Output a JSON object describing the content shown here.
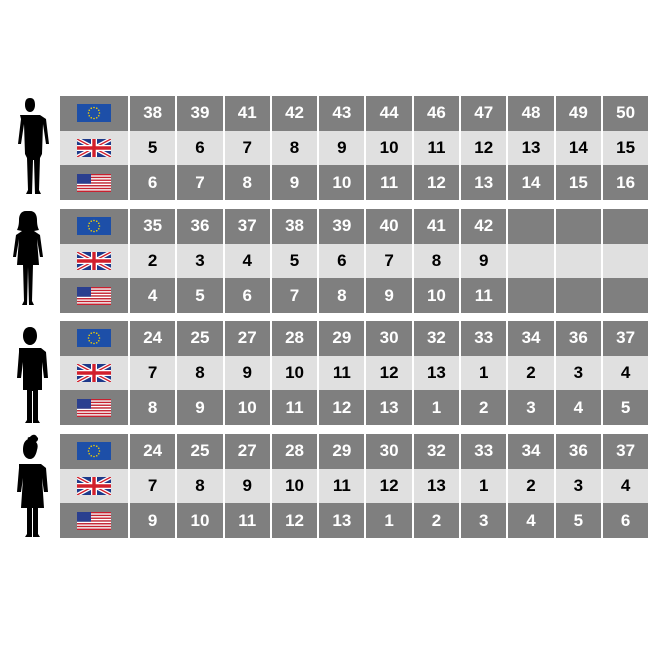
{
  "colors": {
    "dark_row": "#7f7f7f",
    "light_row": "#e0e0e0"
  },
  "row_flags": [
    "eu-flag-icon",
    "uk-flag-icon",
    "us-flag-icon"
  ],
  "groups": [
    {
      "figure": "man-silhouette-icon",
      "rows": [
        [
          "38",
          "39",
          "41",
          "42",
          "43",
          "44",
          "46",
          "47",
          "48",
          "49",
          "50"
        ],
        [
          "5",
          "6",
          "7",
          "8",
          "9",
          "10",
          "11",
          "12",
          "13",
          "14",
          "15"
        ],
        [
          "6",
          "7",
          "8",
          "9",
          "10",
          "11",
          "12",
          "13",
          "14",
          "15",
          "16"
        ]
      ]
    },
    {
      "figure": "woman-silhouette-icon",
      "rows": [
        [
          "35",
          "36",
          "37",
          "38",
          "39",
          "40",
          "41",
          "42",
          "",
          "",
          ""
        ],
        [
          "2",
          "3",
          "4",
          "5",
          "6",
          "7",
          "8",
          "9",
          "",
          "",
          ""
        ],
        [
          "4",
          "5",
          "6",
          "7",
          "8",
          "9",
          "10",
          "11",
          "",
          "",
          ""
        ]
      ]
    },
    {
      "figure": "boy-silhouette-icon",
      "rows": [
        [
          "24",
          "25",
          "27",
          "28",
          "29",
          "30",
          "32",
          "33",
          "34",
          "36",
          "37"
        ],
        [
          "7",
          "8",
          "9",
          "10",
          "11",
          "12",
          "13",
          "1",
          "2",
          "3",
          "4"
        ],
        [
          "8",
          "9",
          "10",
          "11",
          "12",
          "13",
          "1",
          "2",
          "3",
          "4",
          "5"
        ]
      ]
    },
    {
      "figure": "girl-silhouette-icon",
      "rows": [
        [
          "24",
          "25",
          "27",
          "28",
          "29",
          "30",
          "32",
          "33",
          "34",
          "36",
          "37"
        ],
        [
          "7",
          "8",
          "9",
          "10",
          "11",
          "12",
          "13",
          "1",
          "2",
          "3",
          "4"
        ],
        [
          "9",
          "10",
          "11",
          "12",
          "13",
          "1",
          "2",
          "3",
          "4",
          "5",
          "6"
        ]
      ]
    }
  ]
}
